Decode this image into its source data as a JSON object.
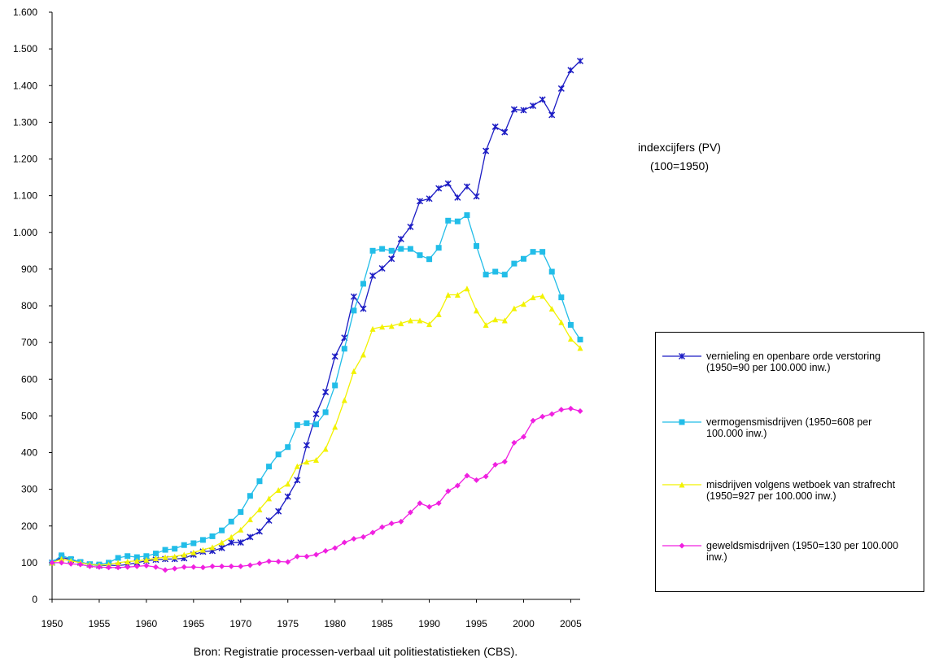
{
  "chart_data": {
    "type": "line",
    "annotation": [
      "indexcijfers (PV)",
      "(100=1950)"
    ],
    "source": "Bron: Registratie processen-verbaal uit politiestatistieken (CBS).",
    "x": [
      1950,
      1951,
      1952,
      1953,
      1954,
      1955,
      1956,
      1957,
      1958,
      1959,
      1960,
      1961,
      1962,
      1963,
      1964,
      1965,
      1966,
      1967,
      1968,
      1969,
      1970,
      1971,
      1972,
      1973,
      1974,
      1975,
      1976,
      1977,
      1978,
      1979,
      1980,
      1981,
      1982,
      1983,
      1984,
      1985,
      1986,
      1987,
      1988,
      1989,
      1990,
      1991,
      1992,
      1993,
      1994,
      1995,
      1996,
      1997,
      1998,
      1999,
      2000,
      2001,
      2002,
      2003,
      2004,
      2005,
      2006
    ],
    "xlim": [
      1950,
      2006
    ],
    "xticks": [
      1950,
      1955,
      1960,
      1965,
      1970,
      1975,
      1980,
      1985,
      1990,
      1995,
      2000,
      2005
    ],
    "ylim": [
      0,
      1600
    ],
    "yticks": [
      0,
      100,
      200,
      300,
      400,
      500,
      600,
      700,
      800,
      900,
      {
        "value": 1000,
        "label": "1.000"
      },
      {
        "value": 1100,
        "label": "1.100"
      },
      {
        "value": 1200,
        "label": "1.200"
      },
      {
        "value": 1300,
        "label": "1.300"
      },
      {
        "value": 1400,
        "label": "1.400"
      },
      {
        "value": 1500,
        "label": "1.500"
      },
      {
        "value": 1600,
        "label": "1.600"
      }
    ],
    "grid": false,
    "legend": "right",
    "series": [
      {
        "name": "vernieling en openbare orde verstoring (1950=90 per 100.000 inw.)",
        "color": "#1c1cc4",
        "marker": "star",
        "values": [
          100,
          115,
          108,
          100,
          95,
          92,
          93,
          92,
          95,
          100,
          105,
          108,
          110,
          110,
          112,
          122,
          130,
          132,
          140,
          155,
          155,
          170,
          185,
          215,
          240,
          280,
          325,
          420,
          505,
          565,
          662,
          713,
          825,
          792,
          882,
          902,
          928,
          982,
          1015,
          1085,
          1092,
          1120,
          1133,
          1095,
          1125,
          1098,
          1222,
          1288,
          1273,
          1335,
          1333,
          1345,
          1362,
          1320,
          1392,
          1442,
          1467
        ]
      },
      {
        "name": "vermogensmisdrijven (1950=608 per 100.000 inw.)",
        "color": "#22bde8",
        "marker": "square",
        "values": [
          100,
          120,
          110,
          102,
          96,
          95,
          100,
          113,
          118,
          115,
          118,
          125,
          135,
          138,
          148,
          153,
          162,
          172,
          188,
          212,
          238,
          282,
          322,
          362,
          395,
          415,
          475,
          480,
          477,
          510,
          583,
          683,
          787,
          860,
          950,
          955,
          950,
          955,
          955,
          938,
          927,
          958,
          1032,
          1030,
          1047,
          963,
          885,
          893,
          885,
          915,
          928,
          947,
          947,
          893,
          823,
          748,
          708
        ]
      },
      {
        "name": "misdrijven volgens wetboek van strafrecht (1950=927 per 100.000 inw.)",
        "color": "#f2f200",
        "marker": "triangle",
        "values": [
          100,
          110,
          105,
          100,
          95,
          93,
          95,
          100,
          103,
          105,
          108,
          112,
          115,
          117,
          122,
          128,
          135,
          142,
          155,
          170,
          190,
          218,
          245,
          275,
          298,
          315,
          363,
          375,
          380,
          410,
          470,
          543,
          622,
          667,
          737,
          743,
          745,
          752,
          760,
          760,
          750,
          777,
          830,
          830,
          847,
          787,
          748,
          763,
          760,
          793,
          805,
          823,
          827,
          792,
          755,
          710,
          685
        ]
      },
      {
        "name": "geweldsmisdrijven (1950=130 per 100.000 inw.)",
        "color": "#f020e0",
        "marker": "diamond",
        "values": [
          100,
          100,
          97,
          95,
          90,
          88,
          87,
          87,
          88,
          90,
          92,
          88,
          80,
          84,
          88,
          88,
          87,
          90,
          90,
          90,
          90,
          93,
          98,
          104,
          103,
          102,
          117,
          117,
          122,
          132,
          140,
          155,
          165,
          170,
          182,
          197,
          207,
          212,
          237,
          262,
          252,
          262,
          295,
          310,
          337,
          325,
          335,
          367,
          375,
          427,
          443,
          487,
          498,
          505,
          517,
          520,
          513
        ]
      }
    ]
  }
}
